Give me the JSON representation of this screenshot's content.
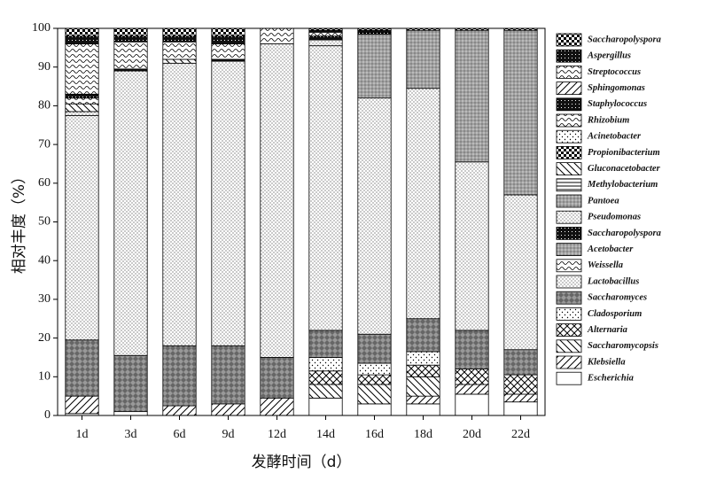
{
  "chart_data": {
    "type": "stacked-bar",
    "x_label": "发酵时间（d）",
    "y_label": "相对丰度（%）",
    "categories": [
      "1d",
      "3d",
      "6d",
      "9d",
      "12d",
      "14d",
      "16d",
      "18d",
      "20d",
      "22d"
    ],
    "ylim": [
      0,
      100
    ],
    "yticks": [
      0,
      10,
      20,
      30,
      40,
      50,
      60,
      70,
      80,
      90,
      100
    ],
    "series": [
      {
        "name": "Escherichia",
        "pattern": "plain",
        "values": [
          0.5,
          1,
          0,
          0,
          0,
          4.5,
          3,
          3,
          5.5,
          3.5
        ]
      },
      {
        "name": "Klebsiella",
        "pattern": "diag",
        "values": [
          4.5,
          0,
          2.5,
          3,
          4.5,
          0,
          0,
          2,
          2.5,
          2
        ]
      },
      {
        "name": "Saccharomycopsis",
        "pattern": "back",
        "values": [
          0,
          0,
          0,
          0,
          0,
          3.5,
          5,
          5,
          0,
          0
        ]
      },
      {
        "name": "Alternaria",
        "pattern": "cross",
        "values": [
          0,
          0,
          0,
          0,
          0,
          3.5,
          2.5,
          3,
          4,
          5
        ]
      },
      {
        "name": "Cladosporium",
        "pattern": "sparse",
        "values": [
          0,
          0,
          0,
          0,
          0,
          3.5,
          3,
          3.5,
          0,
          0
        ]
      },
      {
        "name": "Saccharomyces",
        "pattern": "diamond",
        "values": [
          14.5,
          14.5,
          15.5,
          15,
          10.5,
          7,
          7.5,
          8.5,
          10,
          6.5
        ]
      },
      {
        "name": "Lactobacillus",
        "pattern": "dots",
        "values": [
          58,
          73.5,
          73,
          73.5,
          81,
          73.5,
          61,
          59.5,
          43.5,
          40
        ]
      },
      {
        "name": "Weissella",
        "pattern": "wave",
        "values": [
          0,
          0,
          0,
          0,
          0,
          0,
          0,
          0,
          0,
          0
        ]
      },
      {
        "name": "Acetobacter",
        "pattern": "dense",
        "values": [
          0,
          0,
          0,
          0,
          0,
          0,
          16.5,
          15,
          34,
          42.5
        ]
      },
      {
        "name": "Saccharopolyspora",
        "pattern": "black",
        "values": [
          0,
          0,
          0,
          0,
          0,
          0,
          0,
          0,
          0,
          0
        ]
      },
      {
        "name": "Pseudomonas",
        "pattern": "dots",
        "values": [
          1,
          0,
          0,
          0,
          0,
          1.5,
          0,
          0,
          0,
          0
        ]
      },
      {
        "name": "Pantoea",
        "pattern": "dense",
        "values": [
          0,
          0,
          0,
          0,
          0,
          0,
          0,
          0,
          0,
          0
        ]
      },
      {
        "name": "Methylobacterium",
        "pattern": "hline",
        "values": [
          0,
          0,
          0,
          0,
          0,
          0,
          0,
          0,
          0,
          0
        ]
      },
      {
        "name": "Gluconacetobacter",
        "pattern": "back",
        "values": [
          2,
          0,
          1,
          0,
          0,
          0,
          0,
          0,
          0,
          0
        ]
      },
      {
        "name": "Propionibacterium",
        "pattern": "checker",
        "values": [
          0,
          0,
          0,
          0,
          0,
          0,
          0,
          0,
          0,
          0
        ]
      },
      {
        "name": "Acinetobacter",
        "pattern": "sparse",
        "values": [
          0,
          0,
          0,
          0,
          0,
          0,
          0,
          0,
          0,
          0
        ]
      },
      {
        "name": "Rhizobium",
        "pattern": "wave",
        "values": [
          1.5,
          0,
          0,
          0,
          0,
          0,
          0,
          0,
          0,
          0
        ]
      },
      {
        "name": "Staphylococcus",
        "pattern": "black",
        "values": [
          1,
          0.5,
          0,
          0.5,
          0,
          1,
          0.5,
          0,
          0,
          0
        ]
      },
      {
        "name": "Sphingomonas",
        "pattern": "diag",
        "values": [
          0,
          0,
          0,
          0,
          0,
          0,
          0,
          0,
          0,
          0
        ]
      },
      {
        "name": "Streptococcus",
        "pattern": "wave",
        "values": [
          13,
          7,
          4.5,
          4,
          4,
          1,
          0,
          0,
          0,
          0
        ]
      },
      {
        "name": "Aspergillus",
        "pattern": "black",
        "values": [
          2,
          1.5,
          1.5,
          2,
          0,
          0.5,
          0.5,
          0,
          0,
          0
        ]
      },
      {
        "name": "Saccharopolyspora",
        "pattern": "checker",
        "values": [
          2,
          2,
          2,
          2,
          0,
          0.5,
          0.5,
          0.5,
          0.5,
          0.5
        ]
      }
    ]
  }
}
